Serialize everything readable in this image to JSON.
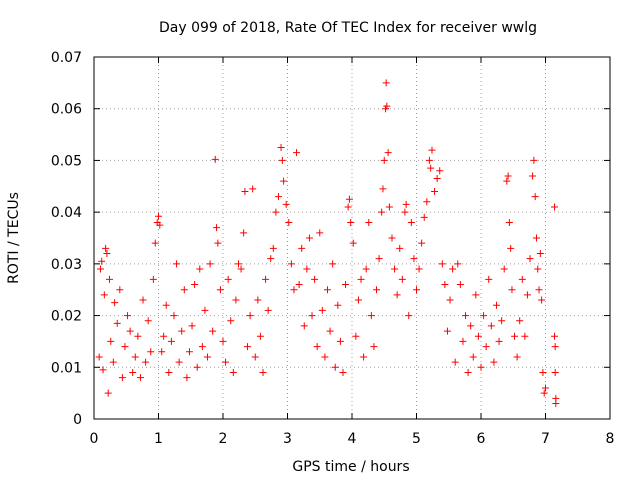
{
  "chart_data": {
    "type": "scatter",
    "title": "Day 099 of 2018, Rate Of TEC Index for receiver wwlg",
    "xlabel": "GPS time / hours",
    "ylabel": "ROTI / TECUs",
    "xlim": [
      0,
      8
    ],
    "ylim": [
      0,
      0.07
    ],
    "xticks": [
      0,
      1,
      2,
      3,
      4,
      5,
      6,
      7,
      8
    ],
    "yticks": [
      0,
      0.01,
      0.02,
      0.03,
      0.04,
      0.05,
      0.06,
      0.07
    ],
    "xtick_labels": [
      "0",
      "1",
      "2",
      "3",
      "4",
      "5",
      "6",
      "7",
      "8"
    ],
    "ytick_labels": [
      "0",
      "0.01",
      "0.02",
      "0.03",
      "0.04",
      "0.05",
      "0.06",
      "0.07"
    ],
    "grid": true,
    "marker": "+",
    "color": "#ff0000",
    "series": [
      {
        "name": "ROTI",
        "points": [
          [
            0.08,
            0.012
          ],
          [
            0.1,
            0.029
          ],
          [
            0.12,
            0.0305
          ],
          [
            0.14,
            0.0095
          ],
          [
            0.16,
            0.024
          ],
          [
            0.18,
            0.033
          ],
          [
            0.2,
            0.032
          ],
          [
            0.22,
            0.005
          ],
          [
            0.24,
            0.027
          ],
          [
            0.26,
            0.015
          ],
          [
            0.3,
            0.011
          ],
          [
            0.32,
            0.0225
          ],
          [
            0.36,
            0.0185
          ],
          [
            0.4,
            0.025
          ],
          [
            0.44,
            0.008
          ],
          [
            0.48,
            0.014
          ],
          [
            0.52,
            0.02
          ],
          [
            0.56,
            0.017
          ],
          [
            0.6,
            0.009
          ],
          [
            0.64,
            0.012
          ],
          [
            0.68,
            0.016
          ],
          [
            0.72,
            0.008
          ],
          [
            0.76,
            0.023
          ],
          [
            0.8,
            0.011
          ],
          [
            0.84,
            0.019
          ],
          [
            0.88,
            0.013
          ],
          [
            0.92,
            0.027
          ],
          [
            0.95,
            0.034
          ],
          [
            0.98,
            0.038
          ],
          [
            1.0,
            0.0392
          ],
          [
            1.02,
            0.0375
          ],
          [
            1.05,
            0.013
          ],
          [
            1.08,
            0.016
          ],
          [
            1.12,
            0.022
          ],
          [
            1.16,
            0.009
          ],
          [
            1.2,
            0.015
          ],
          [
            1.24,
            0.02
          ],
          [
            1.28,
            0.03
          ],
          [
            1.32,
            0.011
          ],
          [
            1.36,
            0.017
          ],
          [
            1.4,
            0.025
          ],
          [
            1.44,
            0.008
          ],
          [
            1.48,
            0.013
          ],
          [
            1.52,
            0.018
          ],
          [
            1.56,
            0.026
          ],
          [
            1.6,
            0.01
          ],
          [
            1.64,
            0.029
          ],
          [
            1.68,
            0.014
          ],
          [
            1.72,
            0.021
          ],
          [
            1.76,
            0.012
          ],
          [
            1.8,
            0.03
          ],
          [
            1.84,
            0.017
          ],
          [
            1.88,
            0.0502
          ],
          [
            1.9,
            0.037
          ],
          [
            1.92,
            0.034
          ],
          [
            1.96,
            0.025
          ],
          [
            2.0,
            0.015
          ],
          [
            2.04,
            0.011
          ],
          [
            2.08,
            0.027
          ],
          [
            2.12,
            0.019
          ],
          [
            2.16,
            0.009
          ],
          [
            2.2,
            0.023
          ],
          [
            2.24,
            0.03
          ],
          [
            2.28,
            0.029
          ],
          [
            2.32,
            0.036
          ],
          [
            2.34,
            0.044
          ],
          [
            2.38,
            0.014
          ],
          [
            2.42,
            0.02
          ],
          [
            2.46,
            0.0445
          ],
          [
            2.5,
            0.012
          ],
          [
            2.54,
            0.023
          ],
          [
            2.58,
            0.016
          ],
          [
            2.62,
            0.009
          ],
          [
            2.66,
            0.027
          ],
          [
            2.7,
            0.021
          ],
          [
            2.74,
            0.031
          ],
          [
            2.78,
            0.033
          ],
          [
            2.82,
            0.04
          ],
          [
            2.86,
            0.043
          ],
          [
            2.9,
            0.0525
          ],
          [
            2.92,
            0.05
          ],
          [
            2.94,
            0.046
          ],
          [
            2.98,
            0.0415
          ],
          [
            3.02,
            0.038
          ],
          [
            3.06,
            0.03
          ],
          [
            3.1,
            0.025
          ],
          [
            3.14,
            0.0515
          ],
          [
            3.18,
            0.026
          ],
          [
            3.22,
            0.033
          ],
          [
            3.26,
            0.018
          ],
          [
            3.3,
            0.029
          ],
          [
            3.34,
            0.035
          ],
          [
            3.38,
            0.02
          ],
          [
            3.42,
            0.027
          ],
          [
            3.46,
            0.014
          ],
          [
            3.5,
            0.036
          ],
          [
            3.54,
            0.021
          ],
          [
            3.58,
            0.012
          ],
          [
            3.62,
            0.025
          ],
          [
            3.66,
            0.017
          ],
          [
            3.7,
            0.03
          ],
          [
            3.74,
            0.01
          ],
          [
            3.78,
            0.022
          ],
          [
            3.82,
            0.015
          ],
          [
            3.86,
            0.009
          ],
          [
            3.9,
            0.026
          ],
          [
            3.94,
            0.041
          ],
          [
            3.96,
            0.0425
          ],
          [
            3.98,
            0.038
          ],
          [
            4.02,
            0.034
          ],
          [
            4.06,
            0.016
          ],
          [
            4.1,
            0.023
          ],
          [
            4.14,
            0.027
          ],
          [
            4.18,
            0.012
          ],
          [
            4.22,
            0.029
          ],
          [
            4.26,
            0.038
          ],
          [
            4.3,
            0.02
          ],
          [
            4.34,
            0.014
          ],
          [
            4.38,
            0.025
          ],
          [
            4.42,
            0.031
          ],
          [
            4.46,
            0.04
          ],
          [
            4.48,
            0.0445
          ],
          [
            4.5,
            0.05
          ],
          [
            4.52,
            0.06
          ],
          [
            4.53,
            0.065
          ],
          [
            4.54,
            0.0605
          ],
          [
            4.56,
            0.0515
          ],
          [
            4.58,
            0.041
          ],
          [
            4.62,
            0.035
          ],
          [
            4.66,
            0.029
          ],
          [
            4.7,
            0.024
          ],
          [
            4.74,
            0.033
          ],
          [
            4.78,
            0.027
          ],
          [
            4.82,
            0.04
          ],
          [
            4.84,
            0.0415
          ],
          [
            4.88,
            0.02
          ],
          [
            4.92,
            0.038
          ],
          [
            4.96,
            0.031
          ],
          [
            5.0,
            0.025
          ],
          [
            5.04,
            0.029
          ],
          [
            5.08,
            0.034
          ],
          [
            5.12,
            0.039
          ],
          [
            5.16,
            0.042
          ],
          [
            5.2,
            0.05
          ],
          [
            5.22,
            0.0485
          ],
          [
            5.24,
            0.052
          ],
          [
            5.28,
            0.044
          ],
          [
            5.32,
            0.0465
          ],
          [
            5.36,
            0.048
          ],
          [
            5.4,
            0.03
          ],
          [
            5.44,
            0.026
          ],
          [
            5.48,
            0.017
          ],
          [
            5.52,
            0.023
          ],
          [
            5.56,
            0.029
          ],
          [
            5.6,
            0.011
          ],
          [
            5.64,
            0.03
          ],
          [
            5.68,
            0.026
          ],
          [
            5.72,
            0.015
          ],
          [
            5.76,
            0.02
          ],
          [
            5.8,
            0.009
          ],
          [
            5.84,
            0.018
          ],
          [
            5.88,
            0.012
          ],
          [
            5.92,
            0.024
          ],
          [
            5.96,
            0.016
          ],
          [
            6.0,
            0.01
          ],
          [
            6.04,
            0.02
          ],
          [
            6.08,
            0.014
          ],
          [
            6.12,
            0.027
          ],
          [
            6.16,
            0.018
          ],
          [
            6.2,
            0.011
          ],
          [
            6.24,
            0.022
          ],
          [
            6.28,
            0.015
          ],
          [
            6.32,
            0.019
          ],
          [
            6.36,
            0.029
          ],
          [
            6.4,
            0.046
          ],
          [
            6.42,
            0.047
          ],
          [
            6.44,
            0.038
          ],
          [
            6.46,
            0.033
          ],
          [
            6.48,
            0.025
          ],
          [
            6.52,
            0.016
          ],
          [
            6.56,
            0.012
          ],
          [
            6.6,
            0.019
          ],
          [
            6.64,
            0.027
          ],
          [
            6.68,
            0.016
          ],
          [
            6.72,
            0.024
          ],
          [
            6.76,
            0.031
          ],
          [
            6.8,
            0.047
          ],
          [
            6.82,
            0.05
          ],
          [
            6.84,
            0.043
          ],
          [
            6.86,
            0.035
          ],
          [
            6.88,
            0.029
          ],
          [
            6.9,
            0.025
          ],
          [
            6.92,
            0.032
          ],
          [
            6.94,
            0.023
          ],
          [
            6.96,
            0.009
          ],
          [
            6.98,
            0.005
          ],
          [
            7.0,
            0.006
          ],
          [
            7.14,
            0.041
          ],
          [
            7.14,
            0.016
          ],
          [
            7.15,
            0.014
          ],
          [
            7.15,
            0.009
          ],
          [
            7.16,
            0.004
          ],
          [
            7.16,
            0.003
          ]
        ]
      }
    ]
  }
}
